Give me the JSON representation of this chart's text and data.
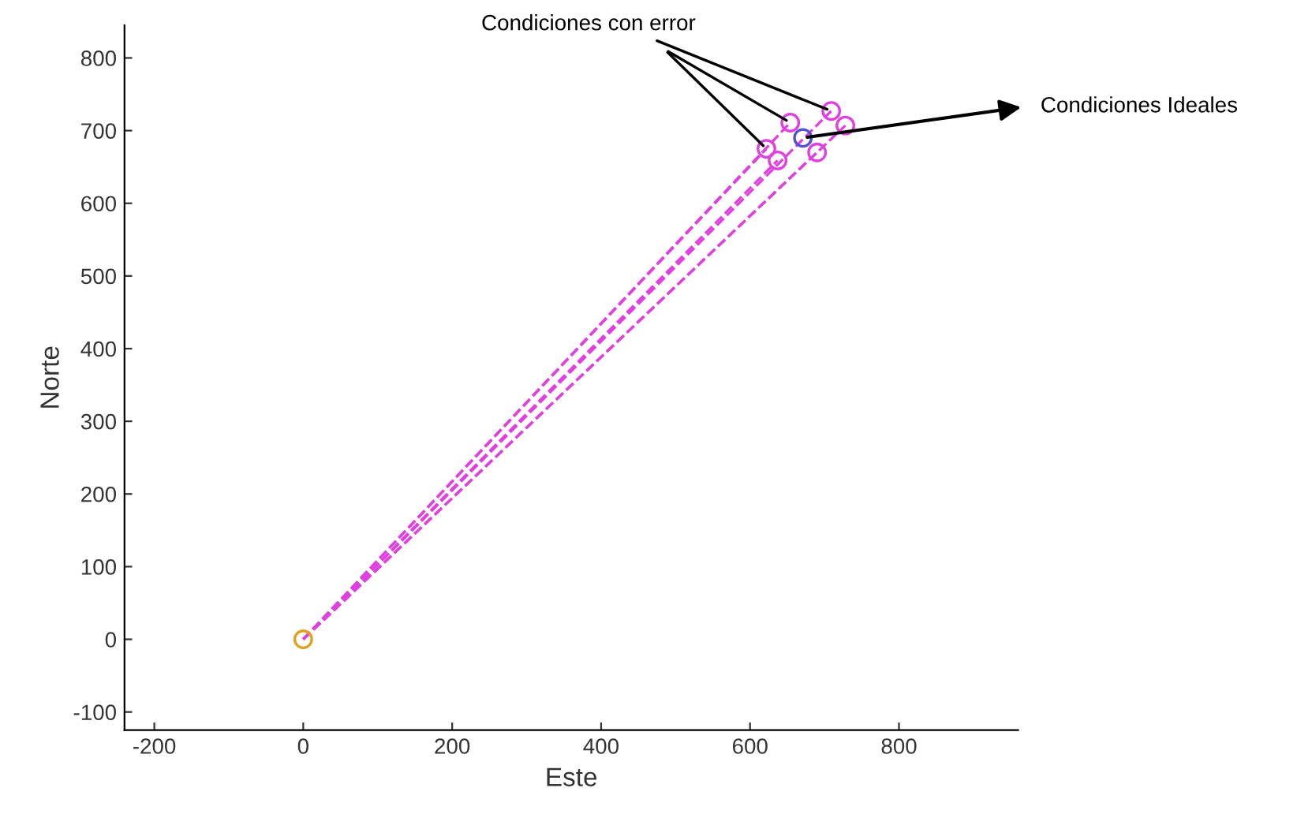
{
  "chart_data": {
    "type": "scatter",
    "xlabel": "Este",
    "ylabel": "Norte",
    "xlim": [
      -240,
      960
    ],
    "ylim": [
      -125,
      845
    ],
    "xticks": [
      -200,
      0,
      200,
      400,
      600,
      800
    ],
    "yticks": [
      -100,
      0,
      100,
      200,
      300,
      400,
      500,
      600,
      700,
      800
    ],
    "grid": false,
    "series": [
      {
        "type": "line",
        "color": "#e040e0",
        "x": [
          0,
          709
        ],
        "values": [
          0,
          727
        ],
        "line_style": "dashed",
        "marker": "none"
      },
      {
        "type": "line",
        "color": "#e040e0",
        "x": [
          0,
          728
        ],
        "values": [
          0,
          707
        ],
        "line_style": "dashed",
        "marker": "none"
      },
      {
        "type": "line",
        "color": "#e040e0",
        "x": [
          0,
          654
        ],
        "values": [
          0,
          711
        ],
        "line_style": "dashed",
        "marker": "none"
      },
      {
        "type": "line",
        "color": "#e040e0",
        "x": [
          0,
          690
        ],
        "values": [
          0,
          670
        ],
        "line_style": "dashed",
        "marker": "none"
      },
      {
        "type": "line",
        "color": "#e040e0",
        "x": [
          0,
          622
        ],
        "values": [
          0,
          675
        ],
        "line_style": "dashed",
        "marker": "none"
      },
      {
        "type": "line",
        "color": "#e040e0",
        "x": [
          0,
          637
        ],
        "values": [
          0,
          659
        ],
        "line_style": "dashed",
        "marker": "none"
      },
      {
        "color": "#e040e0",
        "x": [
          709,
          728,
          654,
          690,
          622,
          637
        ],
        "values": [
          727,
          707,
          711,
          670,
          675,
          659
        ],
        "marker": "circle"
      },
      {
        "color": "#5050d0",
        "x": [
          671
        ],
        "values": [
          690
        ],
        "marker": "circle"
      },
      {
        "color": "#e0a020",
        "x": [
          0
        ],
        "values": [
          0
        ],
        "marker": "circle"
      }
    ],
    "annotations": [
      {
        "text": "Condiciones con error",
        "x": 709,
        "y": 727
      },
      {
        "text": "Condiciones Ideales",
        "x": 671,
        "y": 690
      }
    ]
  }
}
